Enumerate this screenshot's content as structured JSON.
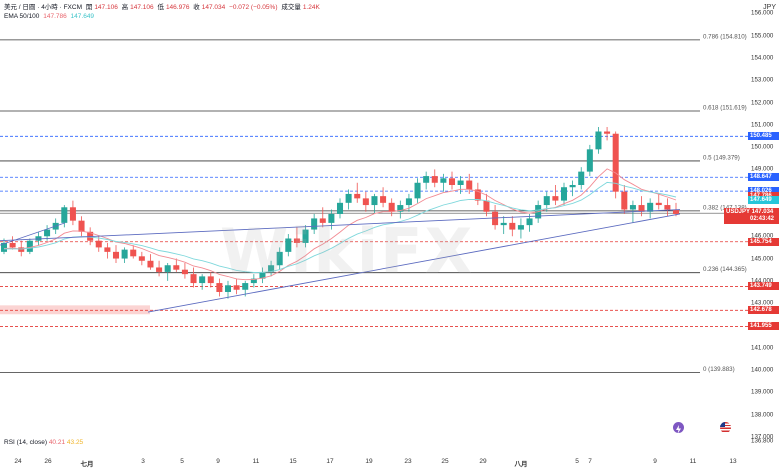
{
  "legend": {
    "line1": "美元 / 日圓 · 4小時 · FXCM",
    "open_label": "開",
    "open": "147.106",
    "high_label": "高",
    "high": "147.106",
    "low_label": "低",
    "low": "146.976",
    "close_label": "收",
    "close": "147.034",
    "change": "−0.072 (−0.05%)",
    "volume_label": "成交量",
    "volume": "1.24K",
    "ema_label": "EMA 50/100",
    "ema50_value": "147.786",
    "ema100_value": "147.649"
  },
  "currency": "JPY",
  "rsi": {
    "label": "RSI (14, close)",
    "value1": "40.21",
    "value2": "43.25"
  },
  "price_labels": [
    {
      "text": "150.485",
      "price": 150.485,
      "style": "blue"
    },
    {
      "text": "148.647",
      "price": 148.647,
      "style": "blue"
    },
    {
      "text": "148.026",
      "price": 148.026,
      "style": "blue"
    },
    {
      "text": "147.786",
      "price": 147.786,
      "style": "red"
    },
    {
      "text": "147.649",
      "price": 147.649,
      "style": "cyan"
    },
    {
      "text": "USDJPY",
      "price": 146.93,
      "style": "red"
    },
    {
      "text": "145.754",
      "price": 145.754,
      "style": "red"
    },
    {
      "text": "143.749",
      "price": 143.749,
      "style": "red"
    },
    {
      "text": "142.678",
      "price": 142.678,
      "style": "red"
    },
    {
      "text": "141.955",
      "price": 141.955,
      "style": "red"
    }
  ],
  "usdjpy_price": "147.034",
  "usdjpy_countdown": "02:43:42",
  "watermark": "WikiFX",
  "colors": {
    "up": "#26a69a",
    "down": "#ef5350",
    "ema50": "#f28b93",
    "ema100": "#7fd8dc",
    "trend": "#5c6bc0",
    "blue_level": "#2962ff",
    "red_level": "#e53935",
    "fib": "#333333"
  },
  "icons": [
    "lightning-icon",
    "us-flag-icon"
  ],
  "chart_data": {
    "type": "candlestick",
    "symbol": "USDJPY",
    "timeframe": "4小時",
    "ylim": [
      136.5,
      156.6
    ],
    "y_ticks": [
      156,
      155,
      154,
      153,
      152,
      151,
      150,
      149,
      148,
      147,
      146,
      145,
      144,
      143,
      142,
      141,
      140,
      139,
      138,
      137,
      136.8
    ],
    "y_tick_labels": [
      "156.000",
      "155.000",
      "154.000",
      "153.000",
      "152.000",
      "151.000",
      "150.000",
      "149.000",
      "148.000",
      "147.000",
      "146.000",
      "145.000",
      "144.000",
      "143.000",
      "142.000",
      "141.000",
      "140.000",
      "139.000",
      "138.000",
      "137.000",
      "136.800"
    ],
    "x_labels": [
      "24",
      "26",
      "七月",
      "3",
      "5",
      "9",
      "11",
      "15",
      "17",
      "19",
      "23",
      "25",
      "29",
      "八月",
      "5",
      "7",
      "9",
      "11",
      "13"
    ],
    "x_bold_labels": [
      "七月",
      "八月"
    ],
    "fib_levels": [
      {
        "label": "0.786 (154.810)",
        "price": 154.81
      },
      {
        "label": "0.618 (151.619)",
        "price": 151.619
      },
      {
        "label": "0.5 (149.379)",
        "price": 149.379
      },
      {
        "label": "0.382 (147.138)",
        "price": 147.138
      },
      {
        "label": "0.236 (144.365)",
        "price": 144.365
      },
      {
        "label": "0 (139.883)",
        "price": 139.883
      }
    ],
    "horizontal_levels": [
      {
        "price": 150.485,
        "style": "blue-dashed"
      },
      {
        "price": 148.647,
        "style": "blue-dashed"
      },
      {
        "price": 148.026,
        "style": "blue-dashed"
      },
      {
        "price": 145.754,
        "style": "red-dashed"
      },
      {
        "price": 143.749,
        "style": "red-dashed"
      },
      {
        "price": 142.678,
        "style": "red-dashed"
      },
      {
        "price": 141.955,
        "style": "red-dashed"
      }
    ],
    "candles": [
      [
        145.3,
        145.9,
        145.2,
        145.7
      ],
      [
        145.7,
        146.0,
        145.4,
        145.5
      ],
      [
        145.5,
        145.8,
        145.1,
        145.3
      ],
      [
        145.3,
        145.9,
        145.2,
        145.8
      ],
      [
        145.8,
        146.2,
        145.6,
        146.0
      ],
      [
        146.0,
        146.5,
        145.8,
        146.3
      ],
      [
        146.3,
        146.8,
        146.1,
        146.6
      ],
      [
        146.6,
        147.4,
        146.4,
        147.3
      ],
      [
        147.3,
        147.6,
        146.5,
        146.7
      ],
      [
        146.7,
        146.9,
        146.0,
        146.2
      ],
      [
        146.2,
        146.4,
        145.6,
        145.8
      ],
      [
        145.8,
        146.0,
        145.3,
        145.5
      ],
      [
        145.5,
        145.7,
        145.0,
        145.3
      ],
      [
        145.3,
        145.6,
        144.8,
        145.0
      ],
      [
        145.0,
        145.5,
        144.8,
        145.4
      ],
      [
        145.4,
        145.6,
        145.0,
        145.1
      ],
      [
        145.1,
        145.3,
        144.7,
        144.9
      ],
      [
        144.9,
        145.2,
        144.5,
        144.6
      ],
      [
        144.6,
        144.9,
        144.2,
        144.4
      ],
      [
        144.4,
        144.8,
        144.0,
        144.7
      ],
      [
        144.7,
        145.0,
        144.4,
        144.5
      ],
      [
        144.5,
        144.8,
        144.1,
        144.3
      ],
      [
        144.3,
        144.6,
        143.7,
        143.9
      ],
      [
        143.9,
        144.3,
        143.6,
        144.2
      ],
      [
        144.2,
        144.4,
        143.7,
        143.9
      ],
      [
        143.9,
        144.1,
        143.3,
        143.5
      ],
      [
        143.5,
        144.0,
        143.2,
        143.8
      ],
      [
        143.8,
        144.1,
        143.4,
        143.6
      ],
      [
        143.6,
        144.0,
        143.3,
        143.9
      ],
      [
        143.9,
        144.3,
        143.7,
        144.1
      ],
      [
        144.1,
        144.6,
        143.9,
        144.4
      ],
      [
        144.4,
        144.9,
        144.2,
        144.7
      ],
      [
        144.7,
        145.5,
        144.5,
        145.3
      ],
      [
        145.3,
        146.1,
        145.1,
        145.9
      ],
      [
        145.9,
        146.4,
        145.5,
        145.7
      ],
      [
        145.7,
        146.5,
        145.5,
        146.3
      ],
      [
        146.3,
        147.0,
        146.1,
        146.8
      ],
      [
        146.8,
        147.3,
        146.4,
        146.6
      ],
      [
        146.6,
        147.2,
        146.3,
        147.0
      ],
      [
        147.0,
        147.7,
        146.8,
        147.5
      ],
      [
        147.5,
        148.1,
        147.2,
        147.9
      ],
      [
        147.9,
        148.4,
        147.5,
        147.7
      ],
      [
        147.7,
        148.0,
        147.1,
        147.4
      ],
      [
        147.4,
        147.9,
        147.0,
        147.8
      ],
      [
        147.8,
        148.2,
        147.3,
        147.5
      ],
      [
        147.5,
        147.7,
        146.9,
        147.1
      ],
      [
        147.1,
        147.6,
        146.8,
        147.4
      ],
      [
        147.4,
        147.9,
        147.1,
        147.7
      ],
      [
        147.7,
        148.6,
        147.5,
        148.4
      ],
      [
        148.4,
        148.9,
        148.1,
        148.7
      ],
      [
        148.7,
        149.0,
        148.2,
        148.4
      ],
      [
        148.4,
        148.8,
        148.0,
        148.6
      ],
      [
        148.6,
        148.9,
        148.1,
        148.3
      ],
      [
        148.3,
        148.7,
        147.9,
        148.5
      ],
      [
        148.5,
        148.8,
        147.9,
        148.1
      ],
      [
        148.1,
        148.4,
        147.4,
        147.6
      ],
      [
        147.6,
        147.9,
        146.9,
        147.1
      ],
      [
        147.1,
        147.4,
        146.3,
        146.5
      ],
      [
        146.5,
        146.9,
        146.1,
        146.6
      ],
      [
        146.6,
        146.9,
        146.0,
        146.3
      ],
      [
        146.3,
        146.8,
        145.9,
        146.5
      ],
      [
        146.5,
        147.0,
        146.2,
        146.8
      ],
      [
        146.8,
        147.6,
        146.6,
        147.4
      ],
      [
        147.4,
        148.0,
        147.1,
        147.8
      ],
      [
        147.8,
        148.3,
        147.4,
        147.6
      ],
      [
        147.6,
        148.4,
        147.4,
        148.2
      ],
      [
        148.2,
        148.5,
        147.8,
        148.3
      ],
      [
        148.3,
        149.1,
        148.1,
        148.9
      ],
      [
        148.9,
        150.1,
        148.7,
        149.9
      ],
      [
        149.9,
        150.9,
        149.7,
        150.7
      ],
      [
        150.7,
        150.9,
        150.3,
        150.6
      ],
      [
        150.6,
        150.7,
        147.7,
        148.0
      ],
      [
        148.0,
        148.3,
        147.0,
        147.2
      ],
      [
        147.2,
        147.6,
        146.6,
        147.4
      ],
      [
        147.4,
        147.8,
        146.9,
        147.1
      ],
      [
        147.1,
        147.7,
        146.8,
        147.5
      ],
      [
        147.5,
        147.9,
        147.2,
        147.4
      ],
      [
        147.4,
        147.7,
        146.9,
        147.2
      ],
      [
        147.2,
        147.5,
        146.9,
        147.0
      ]
    ],
    "trend_line": [
      [
        145.8,
        142.6
      ],
      [
        147.2,
        147.0
      ]
    ]
  }
}
